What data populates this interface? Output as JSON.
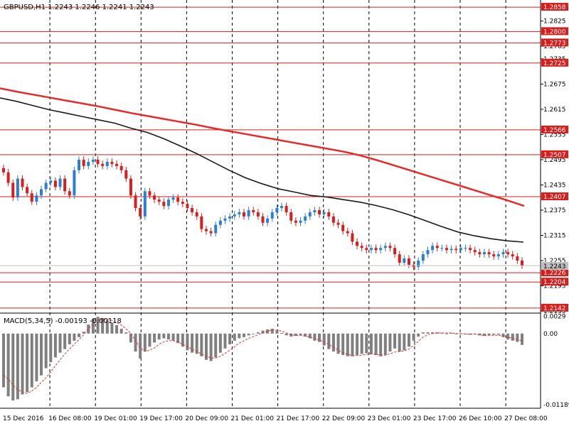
{
  "chart_data": {
    "type": "candlestick",
    "symbol_label": "GBPUSD,H1  1.2243 1.2246 1.2241 1.2243",
    "y_ticks": [
      "1.2825",
      "1.2765",
      "1.2735",
      "1.2675",
      "1.2615",
      "1.2555",
      "1.2495",
      "1.2435",
      "1.2375",
      "1.2315",
      "1.2255",
      "1.2195",
      "1.2135"
    ],
    "y_range": [
      1.213,
      1.2875
    ],
    "x_labels": [
      "15 Dec 2016",
      "16 Dec 08:00",
      "19 Dec 01:00",
      "19 Dec 17:00",
      "20 Dec 09:00",
      "21 Dec 01:00",
      "21 Dec 17:00",
      "22 Dec 09:00",
      "23 Dec 01:00",
      "23 Dec 17:00",
      "26 Dec 10:00",
      "27 Dec 08:00"
    ],
    "level_lines": [
      {
        "value": 1.2858,
        "label": "1.2858"
      },
      {
        "value": 1.28,
        "label": "1.2800"
      },
      {
        "value": 1.2773,
        "label": "1.2773"
      },
      {
        "value": 1.2725,
        "label": "1.2725"
      },
      {
        "value": 1.2566,
        "label": "1.2566"
      },
      {
        "value": 1.2507,
        "label": "1.2507"
      },
      {
        "value": 1.2407,
        "label": "1.2407"
      },
      {
        "value": 1.2226,
        "label": "1.2226"
      },
      {
        "value": 1.2204,
        "label": "1.2204"
      },
      {
        "value": 1.2142,
        "label": "1.2142"
      }
    ],
    "current_price_label": "1.2243",
    "closes": [
      1.2465,
      1.244,
      1.2405,
      1.245,
      1.243,
      1.2415,
      1.2395,
      1.241,
      1.2425,
      1.244,
      1.2445,
      1.243,
      1.245,
      1.242,
      1.241,
      1.247,
      1.2495,
      1.248,
      1.249,
      1.2495,
      1.2485,
      1.248,
      1.249,
      1.2485,
      1.248,
      1.247,
      1.245,
      1.241,
      1.238,
      1.236,
      1.242,
      1.241,
      1.24,
      1.2395,
      1.2385,
      1.24,
      1.2405,
      1.2395,
      1.239,
      1.238,
      1.237,
      1.236,
      1.233,
      1.2325,
      1.232,
      1.234,
      1.235,
      1.2355,
      1.236,
      1.2365,
      1.237,
      1.236,
      1.2375,
      1.237,
      1.236,
      1.2345,
      1.2355,
      1.237,
      1.238,
      1.2385,
      1.237,
      1.235,
      1.2345,
      1.235,
      1.236,
      1.237,
      1.2375,
      1.2365,
      1.237,
      1.236,
      1.2345,
      1.234,
      1.2325,
      1.232,
      1.23,
      1.229,
      1.2285,
      1.228,
      1.2285,
      1.228,
      1.2285,
      1.229,
      1.2285,
      1.227,
      1.225,
      1.226,
      1.2245,
      1.224,
      1.2255,
      1.227,
      1.228,
      1.229,
      1.2285,
      1.2285,
      1.228,
      1.2283,
      1.228,
      1.2285,
      1.2285,
      1.228,
      1.2275,
      1.227,
      1.2275,
      1.227,
      1.2265,
      1.227,
      1.2275,
      1.227,
      1.2265,
      1.2255,
      1.2243
    ],
    "ma_fast": [
      1.2642,
      1.2634,
      1.2624,
      1.2614,
      1.2606,
      1.2598,
      1.259,
      1.2582,
      1.257,
      1.256,
      1.2545,
      1.2528,
      1.251,
      1.249,
      1.247,
      1.2452,
      1.2438,
      1.2426,
      1.2418,
      1.241,
      1.2406,
      1.24,
      1.2394,
      1.2386,
      1.2376,
      1.2364,
      1.235,
      1.2336,
      1.2323,
      1.2314,
      1.2307,
      1.2302,
      1.2299
    ],
    "ma_slow": [
      1.2665,
      1.2657,
      1.265,
      1.2643,
      1.2636,
      1.2629,
      1.2622,
      1.2614,
      1.2606,
      1.2599,
      1.2592,
      1.2585,
      1.2578,
      1.257,
      1.2563,
      1.2556,
      1.2549,
      1.2542,
      1.2535,
      1.2528,
      1.2521,
      1.2514,
      1.2505,
      1.2494,
      1.2482,
      1.247,
      1.2458,
      1.2446,
      1.2434,
      1.2422,
      1.241,
      1.2398,
      1.2385
    ],
    "macd": {
      "label": "MACD(5,34,5) -0.00193 -0.00118",
      "y_ticks": [
        "0.0029",
        "0.00",
        "-0.01189"
      ],
      "y_range": [
        -0.0125,
        0.0033
      ],
      "histogram": [
        -0.009,
        -0.0105,
        -0.0112,
        -0.011,
        -0.0102,
        -0.0098,
        -0.009,
        -0.008,
        -0.007,
        -0.0058,
        -0.0048,
        -0.004,
        -0.0032,
        -0.0026,
        -0.0018,
        -0.0012,
        -0.0006,
        0.0003,
        0.0015,
        0.0025,
        0.0028,
        0.0026,
        0.0022,
        0.0018,
        0.0014,
        0.0008,
        0.0002,
        -0.0015,
        -0.003,
        -0.0042,
        -0.003,
        -0.0022,
        -0.0015,
        -0.001,
        -0.0008,
        -0.001,
        -0.0012,
        -0.0016,
        -0.0022,
        -0.0028,
        -0.0032,
        -0.0034,
        -0.0038,
        -0.0044,
        -0.0046,
        -0.004,
        -0.0032,
        -0.0025,
        -0.0018,
        -0.0012,
        -0.0008,
        -0.0006,
        -0.0003,
        0.0,
        0.0002,
        0.0005,
        0.0007,
        0.0008,
        0.0005,
        0.0001,
        -0.0003,
        -0.0005,
        -0.0004,
        -0.0003,
        -0.0005,
        -0.0008,
        -0.0012,
        -0.0014,
        -0.002,
        -0.0026,
        -0.003,
        -0.0034,
        -0.0036,
        -0.0038,
        -0.0038,
        -0.0036,
        -0.0034,
        -0.0033,
        -0.0034,
        -0.0036,
        -0.0038,
        -0.0036,
        -0.003,
        -0.0025,
        -0.003,
        -0.0028,
        -0.0022,
        -0.0012,
        -0.0005,
        0.0002,
        0.0002,
        0.0002,
        0.0002,
        0.0001,
        0.0,
        0.0001,
        0.0,
        0.0,
        -0.0001,
        -0.0002,
        -0.0001,
        -0.0003,
        -0.0004,
        -0.0003,
        -0.0002,
        -0.0002,
        -0.0006,
        -0.001,
        -0.0012,
        -0.0014,
        -0.0019
      ],
      "signal": [
        -0.007,
        -0.0076,
        -0.0086,
        -0.0094,
        -0.0098,
        -0.01,
        -0.0096,
        -0.009,
        -0.0082,
        -0.0074,
        -0.0064,
        -0.0054,
        -0.0044,
        -0.0034,
        -0.0026,
        -0.0018,
        -0.001,
        -0.0002,
        0.0008,
        0.0016,
        0.0022,
        0.0024,
        0.0024,
        0.0022,
        0.0018,
        0.0014,
        0.0008,
        0.0,
        -0.0012,
        -0.0024,
        -0.003,
        -0.0028,
        -0.0024,
        -0.0018,
        -0.0014,
        -0.0012,
        -0.0012,
        -0.0014,
        -0.0018,
        -0.0022,
        -0.0026,
        -0.003,
        -0.0034,
        -0.0038,
        -0.0041,
        -0.0041,
        -0.0038,
        -0.0033,
        -0.0028,
        -0.0022,
        -0.0016,
        -0.0012,
        -0.0008,
        -0.0005,
        -0.0002,
        0.0001,
        0.0004,
        0.0006,
        0.0006,
        0.0004,
        0.0001,
        -0.0002,
        -0.0003,
        -0.0003,
        -0.0004,
        -0.0006,
        -0.0008,
        -0.0011,
        -0.0014,
        -0.0018,
        -0.0023,
        -0.0028,
        -0.0032,
        -0.0035,
        -0.0037,
        -0.0037,
        -0.0036,
        -0.0035,
        -0.0034,
        -0.0035,
        -0.0036,
        -0.0036,
        -0.0034,
        -0.0031,
        -0.003,
        -0.0029,
        -0.0026,
        -0.002,
        -0.0013,
        -0.0006,
        -0.0002,
        0.0,
        0.0001,
        0.0001,
        0.0001,
        0.0001,
        0.0,
        0.0,
        -0.0001,
        -0.0001,
        -0.0001,
        -0.0002,
        -0.0003,
        -0.0003,
        -0.0003,
        -0.0003,
        -0.0004,
        -0.0006,
        -0.0008,
        -0.001,
        -0.0012
      ]
    },
    "colors": {
      "bull": "#2a7fd4",
      "bear": "#d81d1d",
      "level": "#d81d1d",
      "ma_slow": "#e52a2a",
      "ma_fast": "#1a1a1a",
      "histogram": "#7f7f7f",
      "signal": "#e03030",
      "grid": "#000000"
    }
  }
}
